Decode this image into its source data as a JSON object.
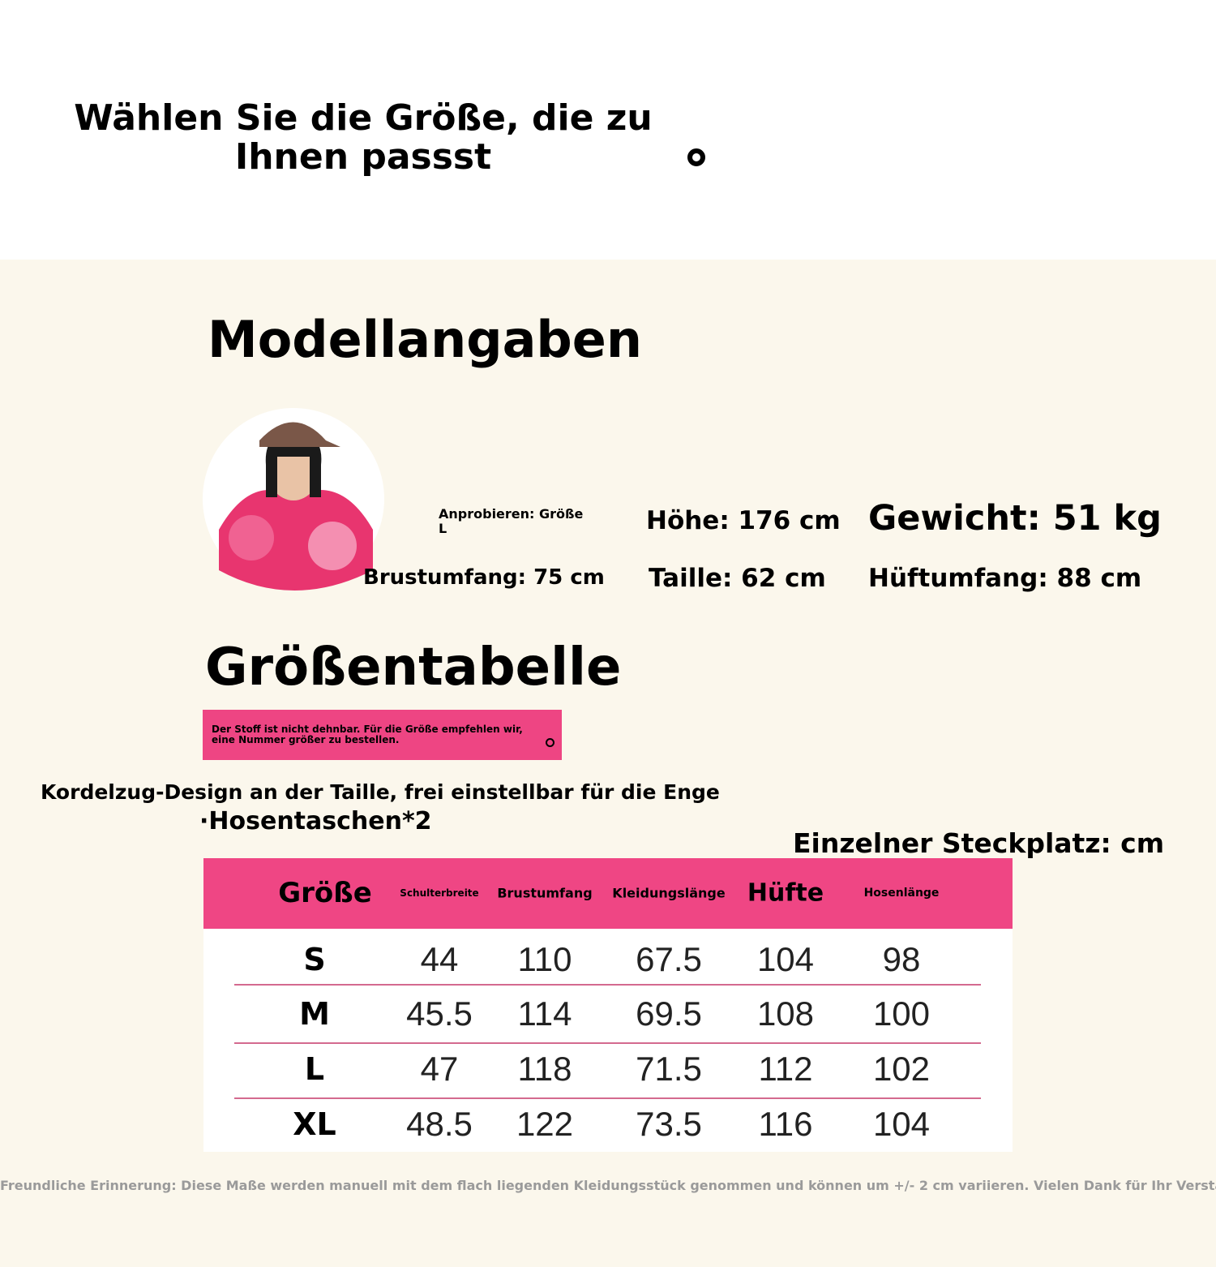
{
  "header": {
    "title": "Wählen Sie die Größe, die zu Ihnen passst"
  },
  "model": {
    "heading": "Modellangaben",
    "try_on": "Anprobieren: Größe L",
    "height": "Höhe: 176 cm",
    "weight": "Gewicht: 51 kg",
    "bust": "Brustumfang: 75 cm",
    "waist": "Taille: 62 cm",
    "hip": "Hüftumfang: 88 cm"
  },
  "size_chart": {
    "heading": "Größentabelle",
    "note": "Der Stoff ist nicht dehnbar. Für die Größe empfehlen wir, eine Nummer größer zu bestellen.",
    "features": [
      "Kordelzug-Design an der Taille, frei einstellbar für die Enge",
      "·Hosentaschen*2"
    ],
    "unit_note": "Einzelner Steckplatz: cm"
  },
  "table": {
    "columns": [
      "Größe",
      "Schulterbreite",
      "Brustumfang",
      "Kleidungslänge",
      "Hüfte",
      "Hosenlänge"
    ],
    "rows": [
      [
        "S",
        "44",
        "110",
        "67.5",
        "104",
        "98"
      ],
      [
        "M",
        "45.5",
        "114",
        "69.5",
        "108",
        "100"
      ],
      [
        "L",
        "47",
        "118",
        "71.5",
        "112",
        "102"
      ],
      [
        "XL",
        "48.5",
        "122",
        "73.5",
        "116",
        "104"
      ]
    ]
  },
  "footer": {
    "text": "Freundliche Erinnerung: Diese Maße werden manuell mit dem flach liegenden Kleidungsstück genommen und können um +/- 2 cm variieren. Vielen Dank für Ihr Verständnis."
  }
}
